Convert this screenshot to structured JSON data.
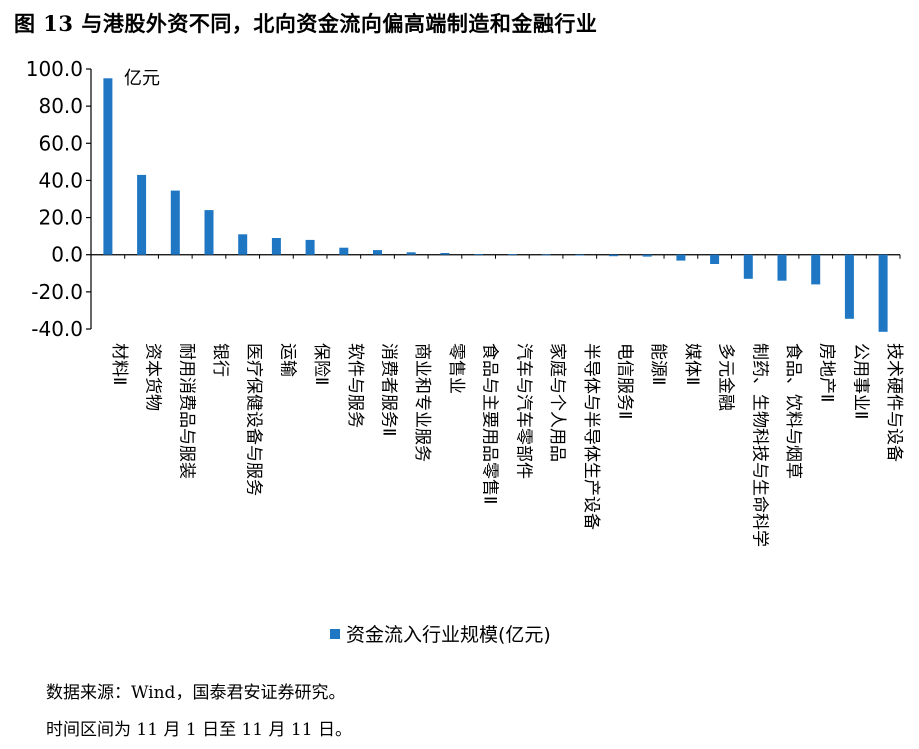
{
  "figure": {
    "title": "图 13 与港股外资不同，北向资金流向偏高端制造和金融行业"
  },
  "chart_data": {
    "type": "bar",
    "unit_annotation": "亿元",
    "categories": [
      "材料Ⅱ",
      "资本货物",
      "耐用消费品与服装",
      "银行",
      "医疗保健设备与服务",
      "运输",
      "保险Ⅱ",
      "软件与服务",
      "消费者服务Ⅱ",
      "商业和专业服务",
      "零售业",
      "食品与主要用品零售Ⅱ",
      "汽车与汽车零部件",
      "家庭与个人用品",
      "半导体与半导体生产设备",
      "电信服务Ⅱ",
      "能源Ⅱ",
      "媒体Ⅱ",
      "多元金融",
      "制药、生物科技与生命科学",
      "食品、饮料与烟草",
      "房地产Ⅱ",
      "公用事业Ⅱ",
      "技术硬件与设备"
    ],
    "series": [
      {
        "name": "资金流入行业规模(亿元)",
        "values": [
          95.0,
          43.0,
          34.5,
          24.0,
          11.0,
          9.0,
          8.0,
          3.8,
          2.5,
          1.3,
          0.9,
          0.4,
          0.2,
          0.1,
          -0.3,
          -0.8,
          -1.0,
          -3.2,
          -5.0,
          -13.0,
          -14.0,
          -16.0,
          -34.5,
          -41.5
        ]
      }
    ],
    "yticks": [
      "100.0",
      "80.0",
      "60.0",
      "40.0",
      "20.0",
      "0.0",
      "-20.0",
      "-40.0"
    ],
    "ylim": [
      -40,
      100
    ],
    "grid": false,
    "legend_position": "bottom",
    "bar_color": "#1f77c4"
  },
  "legend": {
    "label": "资金流入行业规模(亿元)"
  },
  "notes": {
    "source": "数据来源：Wind，国泰君安证券研究。",
    "period": "时间区间为 11 月 1 日至 11 月 11 日。"
  }
}
